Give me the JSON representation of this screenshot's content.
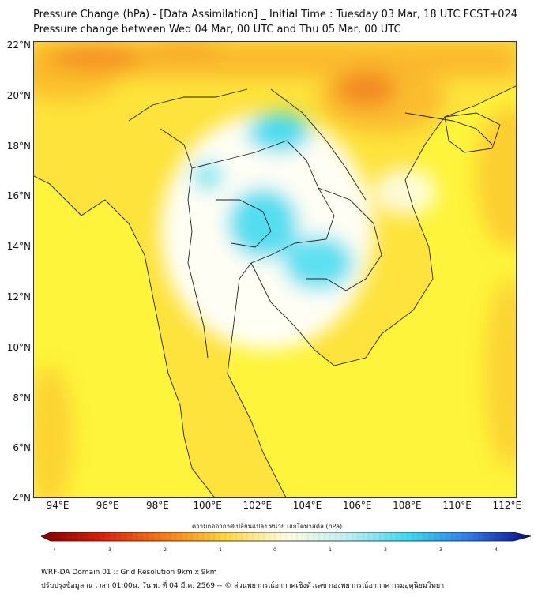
{
  "header": {
    "title_line1": "Pressure Change (hPa) - [Data Assimilation] _ Initial Time : Tuesday 03 Mar, 18 UTC FCST+024",
    "title_line2": "Pressure change between Wed 04 Mar, 00 UTC and Thu 05 Mar, 00 UTC"
  },
  "map": {
    "latitude_labels": [
      "22°N",
      "20°N",
      "18°N",
      "16°N",
      "14°N",
      "12°N",
      "10°N",
      "8°N",
      "6°N",
      "4°N"
    ],
    "longitude_labels": [
      "94°E",
      "96°E",
      "98°E",
      "100°E",
      "102°E",
      "104°E",
      "106°E",
      "108°E",
      "110°E",
      "112°E"
    ],
    "colors": {
      "background": "#fef43c",
      "land": "#fbd63a",
      "low_pressure": "#34d8f0",
      "high_pressure": "#e8240c",
      "border": "#222222"
    }
  },
  "colorbar": {
    "label": "ความกดอากาศเปลี่ยนแปลง หน่วย เฮกโตพาสคัล (hPa)",
    "tick_labels": [
      "-4",
      "-3",
      "-2",
      "-1",
      "0",
      "1",
      "2",
      "3",
      "4"
    ],
    "range": [
      -4,
      4
    ],
    "stops": [
      "#8a0000",
      "#e01e0b",
      "#fb7a17",
      "#fed63a",
      "#fffde0",
      "#bfeff7",
      "#3adcf0",
      "#2f79f0",
      "#080c8a"
    ]
  },
  "footer": {
    "line1": "WRF-DA Domain 01 :: Grid Resolution 9km x 9km",
    "line2": "ปรับปรุงข้อมูล ณ เวลา 01:00น. วัน พ. ที่ 04 มี.ค. 2569 -- © ส่วนพยากรณ์อากาศเชิงตัวเลข กองพยากรณ์อากาศ กรมอุตุนิยมวิทยา"
  }
}
